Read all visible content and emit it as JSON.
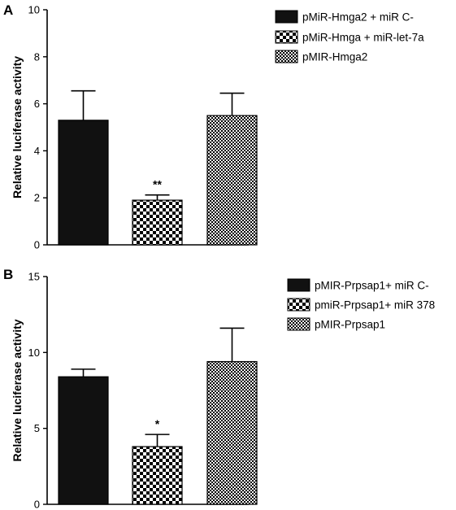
{
  "chart_data": [
    {
      "panel": "A",
      "type": "bar",
      "title": "",
      "xlabel": "",
      "ylabel": "Relative luciferase activity",
      "ylim": [
        0,
        10
      ],
      "yticks": [
        0,
        2,
        4,
        6,
        8,
        10
      ],
      "series": [
        {
          "name": "pMiR-Hmga2 + miR C-",
          "value": 5.3,
          "error": 1.25,
          "pattern": "solid-black",
          "annotation": ""
        },
        {
          "name": "pMiR-Hmga + miR-let-7a",
          "value": 1.9,
          "error": 0.22,
          "pattern": "checker",
          "annotation": "**"
        },
        {
          "name": "pMIR-Hmga2",
          "value": 5.5,
          "error": 0.95,
          "pattern": "dense-check",
          "annotation": ""
        }
      ],
      "legend_position": "top-right",
      "grid": false
    },
    {
      "panel": "B",
      "type": "bar",
      "title": "",
      "xlabel": "",
      "ylabel": "Relative luciferase activity",
      "ylim": [
        0,
        15
      ],
      "yticks": [
        0,
        5,
        10,
        15
      ],
      "series": [
        {
          "name": "pMIR-Prpsap1+ miR C-",
          "value": 8.4,
          "error": 0.5,
          "pattern": "solid-black",
          "annotation": ""
        },
        {
          "name": "pmiR-Prpsap1+ miR 378",
          "value": 3.8,
          "error": 0.8,
          "pattern": "checker",
          "annotation": "*"
        },
        {
          "name": "pMIR-Prpsap1",
          "value": 9.4,
          "error": 2.2,
          "pattern": "dense-check",
          "annotation": ""
        }
      ],
      "legend_position": "top-right",
      "grid": false
    }
  ]
}
